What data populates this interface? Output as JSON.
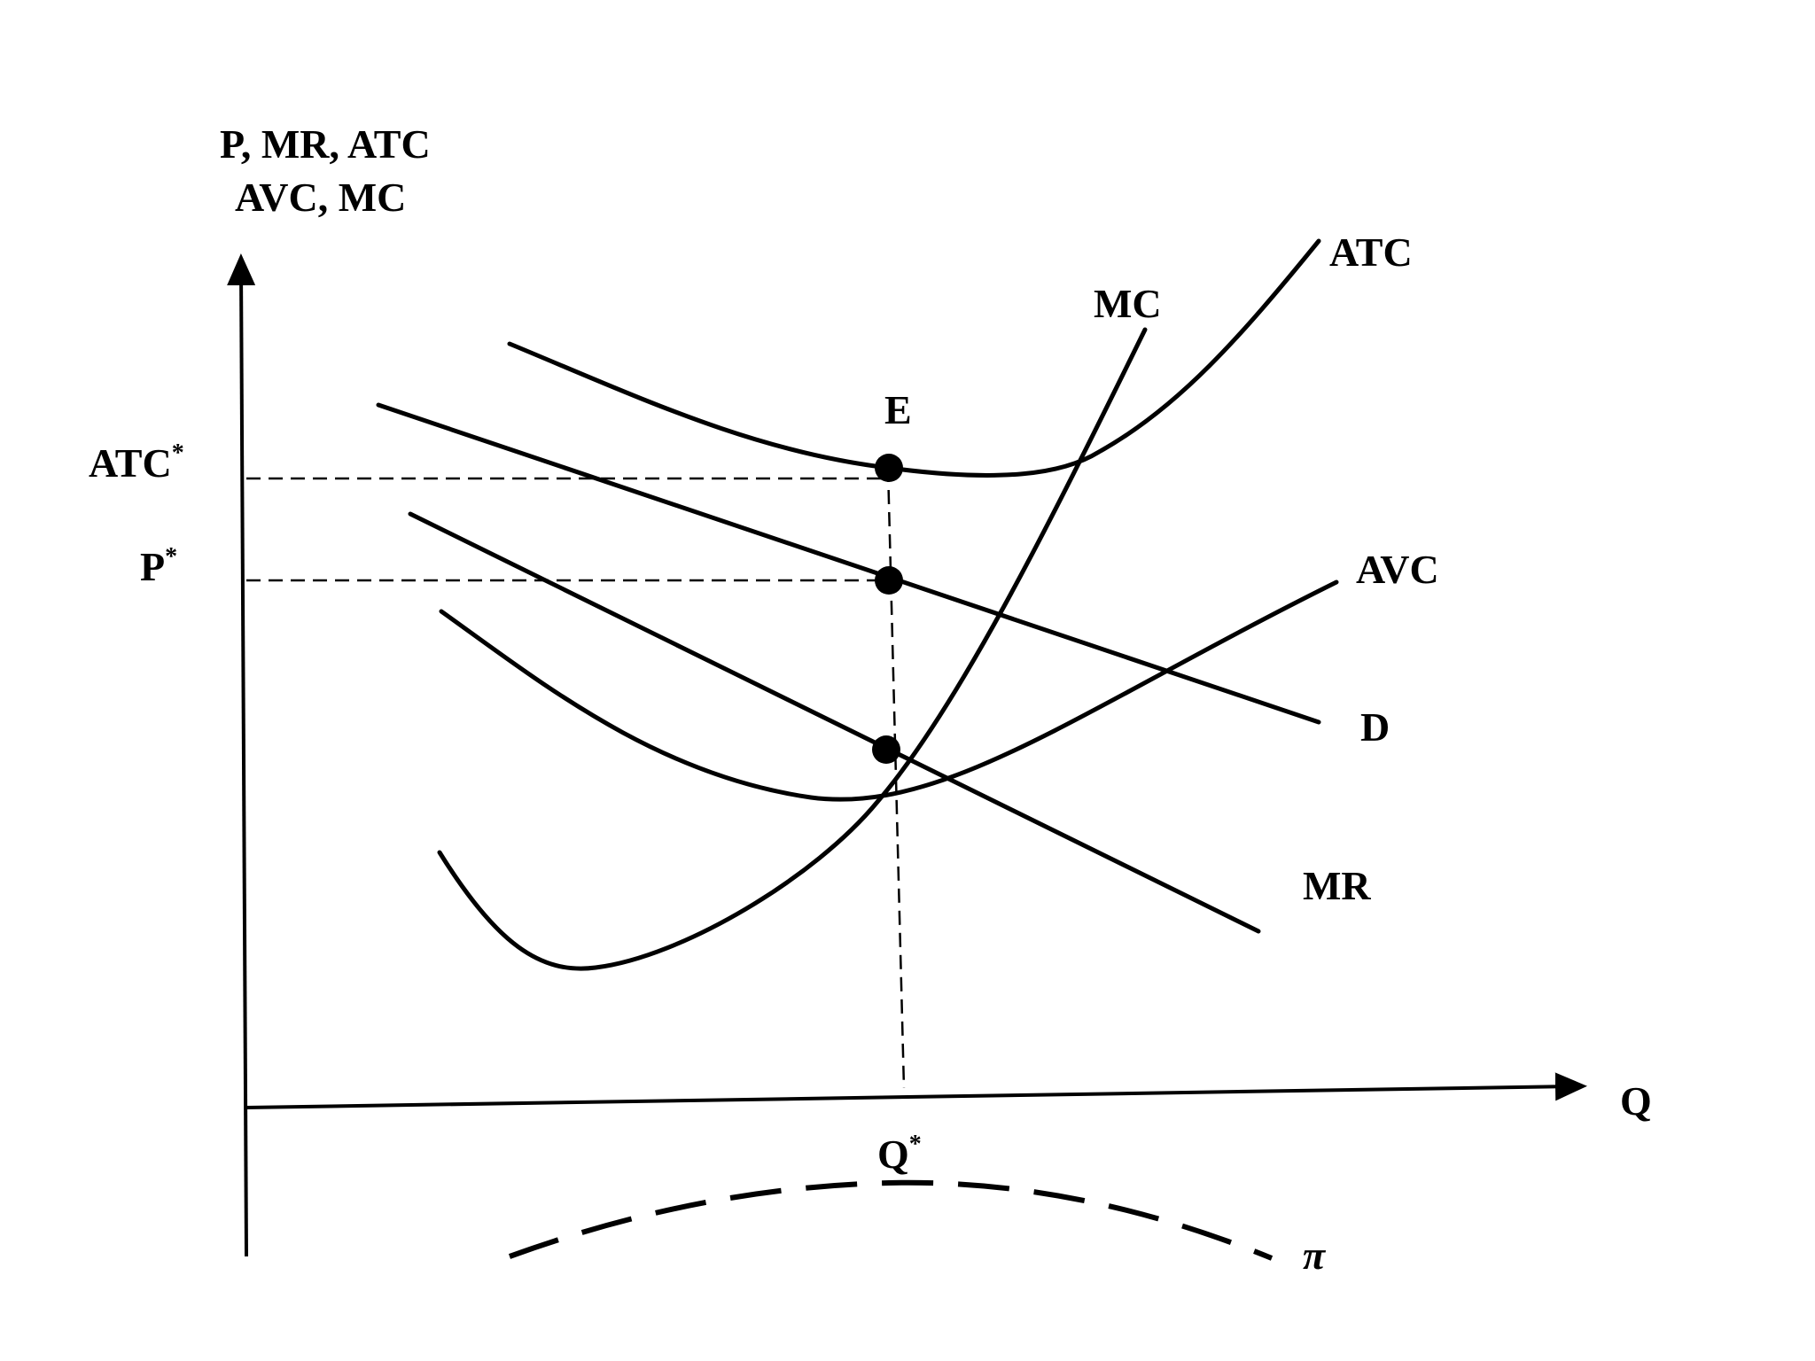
{
  "diagram": {
    "axes": {
      "y_label_line1": "P, MR, ATC",
      "y_label_line2": "AVC, MC",
      "x_label": "Q"
    },
    "curves": {
      "atc": "ATC",
      "mc": "MC",
      "avc": "AVC",
      "demand": "D",
      "mr": "MR",
      "profit": "π"
    },
    "points": {
      "equilibrium": "E"
    },
    "markers": {
      "atc_star": "ATC",
      "p_star": "P",
      "q_star": "Q",
      "star": "*"
    },
    "colors": {
      "stroke": "#000000",
      "background": "#ffffff"
    }
  }
}
